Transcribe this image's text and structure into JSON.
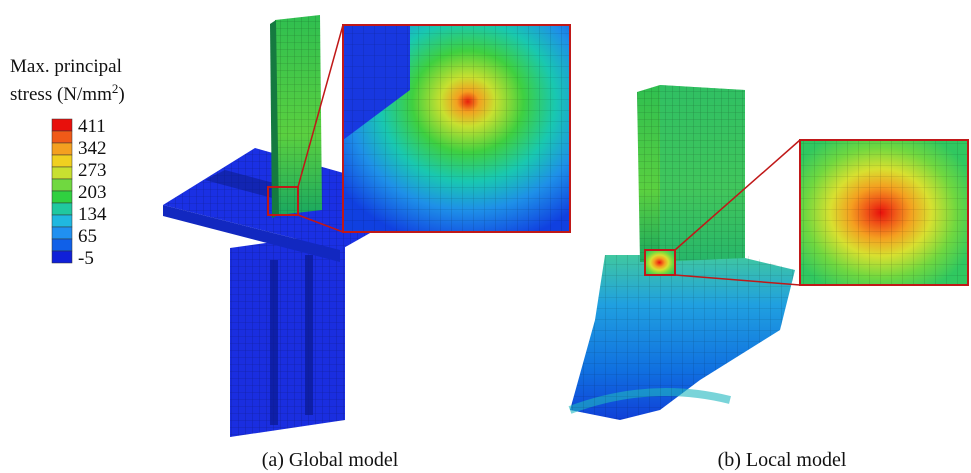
{
  "legend": {
    "title_line1": "Max. principal",
    "title_line2": "stress (N/mm",
    "title_sup": "2",
    "title_close": ")",
    "labels": [
      "411",
      "342",
      "273",
      "203",
      "134",
      "65",
      "-5"
    ]
  },
  "captions": {
    "a": "(a) Global model",
    "b": "(b) Local model"
  }
}
